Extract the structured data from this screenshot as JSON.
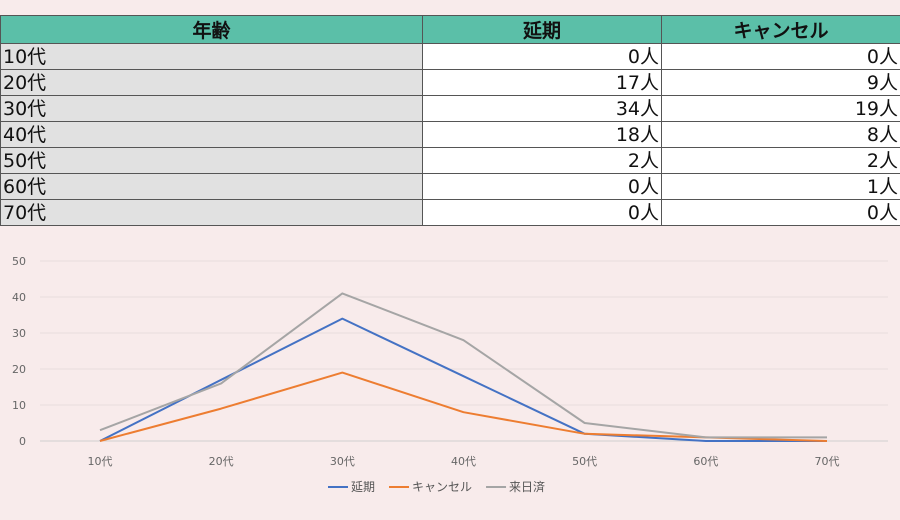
{
  "table": {
    "headers": [
      "年齢",
      "延期",
      "キャンセル"
    ],
    "rows": [
      {
        "age": "10代",
        "postpone": "0人",
        "cancel": "0人"
      },
      {
        "age": "20代",
        "postpone": "17人",
        "cancel": "9人"
      },
      {
        "age": "30代",
        "postpone": "34人",
        "cancel": "19人"
      },
      {
        "age": "40代",
        "postpone": "18人",
        "cancel": "8人"
      },
      {
        "age": "50代",
        "postpone": "2人",
        "cancel": "2人"
      },
      {
        "age": "60代",
        "postpone": "0人",
        "cancel": "1人"
      },
      {
        "age": "70代",
        "postpone": "0人",
        "cancel": "0人"
      }
    ]
  },
  "chart_data": {
    "type": "line",
    "categories": [
      "10代",
      "20代",
      "30代",
      "40代",
      "50代",
      "60代",
      "70代"
    ],
    "series": [
      {
        "name": "延期",
        "values": [
          0,
          17,
          34,
          18,
          2,
          0,
          0
        ],
        "color": "#4472c4"
      },
      {
        "name": "キャンセル",
        "values": [
          0,
          9,
          19,
          8,
          2,
          1,
          0
        ],
        "color": "#ed7d31"
      },
      {
        "name": "来日済",
        "values": [
          3,
          16,
          41,
          28,
          5,
          1,
          1
        ],
        "color": "#a5a5a5"
      }
    ],
    "ylim": [
      0,
      50
    ],
    "yticks": [
      0,
      10,
      20,
      30,
      40,
      50
    ],
    "grid": true,
    "legend": "bottom"
  }
}
